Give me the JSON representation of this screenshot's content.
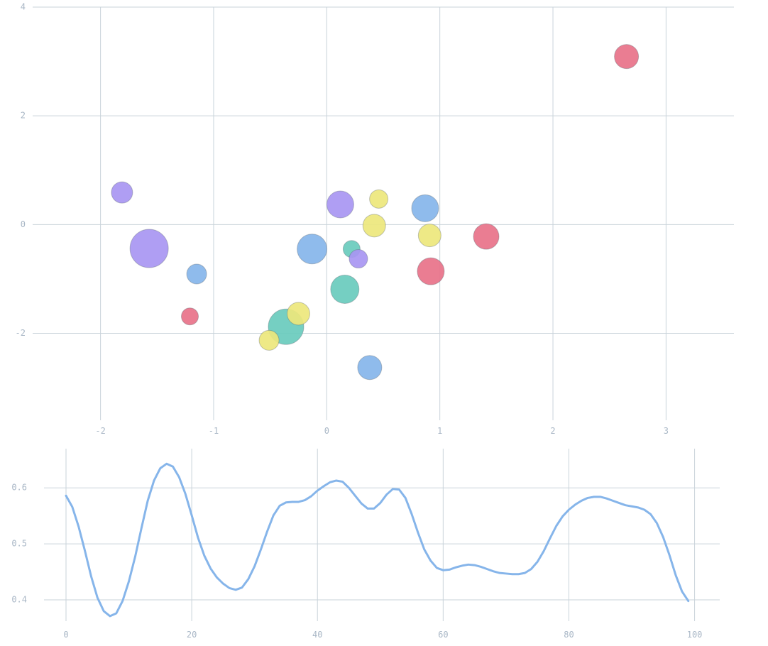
{
  "chart_data": [
    {
      "type": "scatter",
      "title": "",
      "xlabel": "",
      "ylabel": "",
      "xlim": [
        -2.6,
        3.6
      ],
      "ylim": [
        -3.6,
        4.0
      ],
      "xticks": [
        -2,
        -1,
        0,
        1,
        2,
        3
      ],
      "yticks": [
        -2,
        0,
        2,
        4
      ],
      "grid": true,
      "colors": {
        "purple": "#a896f2",
        "blue": "#86b5ea",
        "teal": "#69cbbd",
        "yellow": "#ede77c",
        "red": "#e87289"
      },
      "points": [
        {
          "x": 2.65,
          "y": 3.09,
          "size": 17,
          "color": "red"
        },
        {
          "x": -1.81,
          "y": 0.59,
          "size": 15,
          "color": "purple"
        },
        {
          "x": -1.57,
          "y": -0.44,
          "size": 27,
          "color": "purple"
        },
        {
          "x": -1.15,
          "y": -0.91,
          "size": 14,
          "color": "blue"
        },
        {
          "x": -1.21,
          "y": -1.69,
          "size": 12,
          "color": "red"
        },
        {
          "x": -0.36,
          "y": -1.88,
          "size": 25,
          "color": "teal"
        },
        {
          "x": -0.51,
          "y": -2.13,
          "size": 14,
          "color": "yellow"
        },
        {
          "x": -0.25,
          "y": -1.64,
          "size": 16,
          "color": "yellow"
        },
        {
          "x": -0.13,
          "y": -0.45,
          "size": 21,
          "color": "blue"
        },
        {
          "x": 0.12,
          "y": 0.37,
          "size": 19,
          "color": "purple"
        },
        {
          "x": 0.22,
          "y": -0.45,
          "size": 12,
          "color": "teal"
        },
        {
          "x": 0.16,
          "y": -1.19,
          "size": 20,
          "color": "teal"
        },
        {
          "x": 0.28,
          "y": -0.63,
          "size": 13,
          "color": "purple"
        },
        {
          "x": 0.38,
          "y": -2.63,
          "size": 17,
          "color": "blue"
        },
        {
          "x": 0.42,
          "y": -0.02,
          "size": 16,
          "color": "yellow"
        },
        {
          "x": 0.46,
          "y": 0.47,
          "size": 13,
          "color": "yellow"
        },
        {
          "x": 0.87,
          "y": 0.3,
          "size": 19,
          "color": "blue"
        },
        {
          "x": 0.91,
          "y": -0.2,
          "size": 16,
          "color": "yellow"
        },
        {
          "x": 0.92,
          "y": -0.86,
          "size": 19,
          "color": "red"
        },
        {
          "x": 1.41,
          "y": -0.22,
          "size": 18,
          "color": "red"
        }
      ]
    },
    {
      "type": "line",
      "title": "",
      "xlabel": "",
      "ylabel": "",
      "xlim": [
        -3.5,
        104
      ],
      "ylim": [
        0.362,
        0.67
      ],
      "xticks": [
        0,
        20,
        40,
        60,
        80,
        100
      ],
      "yticks": [
        0.4,
        0.5,
        0.6
      ],
      "ytick_labels": [
        "0.4",
        "0.5",
        "0.6"
      ],
      "grid": true,
      "color": "#86b5ea",
      "series": [
        {
          "x": [
            0,
            1,
            2,
            3,
            4,
            5,
            6,
            7,
            8,
            9,
            10,
            11,
            12,
            13,
            14,
            15,
            16,
            17,
            18,
            19,
            20,
            21,
            22,
            23,
            24,
            25,
            26,
            27,
            28,
            29,
            30,
            31,
            32,
            33,
            34,
            35,
            36,
            37,
            38,
            39,
            40,
            41,
            42,
            43,
            44,
            45,
            46,
            47,
            48,
            49,
            50,
            51,
            52,
            53,
            54,
            55,
            56,
            57,
            58,
            59,
            60,
            61,
            62,
            63,
            64,
            65,
            66,
            67,
            68,
            69,
            70,
            71,
            72,
            73,
            74,
            75,
            76,
            77,
            78,
            79,
            80,
            81,
            82,
            83,
            84,
            85,
            86,
            87,
            88,
            89,
            90,
            91,
            92,
            93,
            94,
            95,
            96,
            97,
            98,
            99
          ],
          "values": [
            0.586,
            0.566,
            0.531,
            0.488,
            0.442,
            0.404,
            0.38,
            0.371,
            0.376,
            0.398,
            0.433,
            0.477,
            0.528,
            0.577,
            0.613,
            0.635,
            0.643,
            0.638,
            0.619,
            0.589,
            0.551,
            0.511,
            0.479,
            0.456,
            0.44,
            0.429,
            0.421,
            0.418,
            0.422,
            0.437,
            0.46,
            0.49,
            0.522,
            0.551,
            0.568,
            0.574,
            0.575,
            0.575,
            0.578,
            0.585,
            0.595,
            0.603,
            0.61,
            0.613,
            0.611,
            0.6,
            0.586,
            0.572,
            0.563,
            0.563,
            0.573,
            0.588,
            0.598,
            0.597,
            0.582,
            0.553,
            0.52,
            0.49,
            0.47,
            0.457,
            0.453,
            0.454,
            0.458,
            0.461,
            0.463,
            0.462,
            0.459,
            0.455,
            0.451,
            0.448,
            0.447,
            0.446,
            0.446,
            0.448,
            0.455,
            0.468,
            0.487,
            0.51,
            0.532,
            0.549,
            0.561,
            0.57,
            0.577,
            0.582,
            0.584,
            0.584,
            0.581,
            0.577,
            0.573,
            0.569,
            0.567,
            0.565,
            0.561,
            0.553,
            0.537,
            0.512,
            0.48,
            0.444,
            0.415,
            0.398
          ]
        }
      ]
    }
  ]
}
